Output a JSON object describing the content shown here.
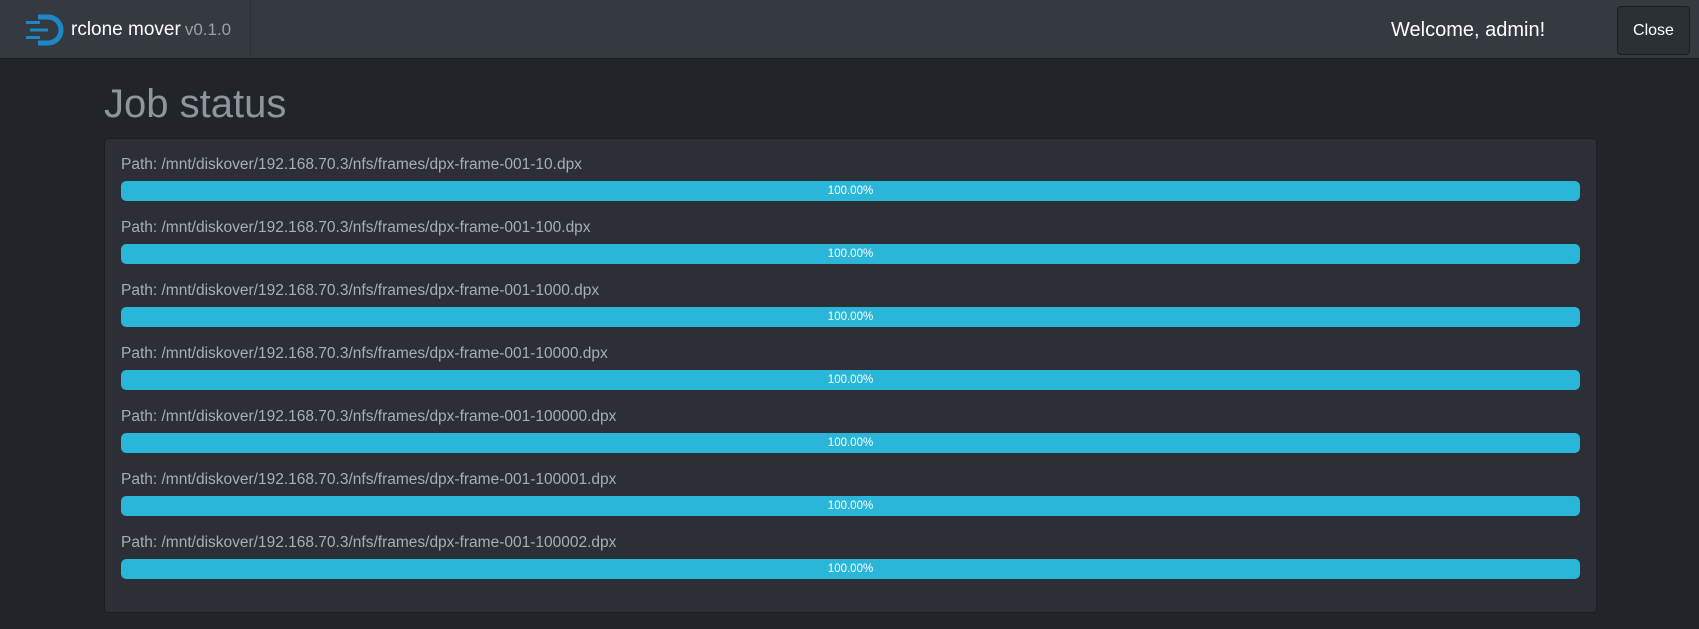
{
  "header": {
    "app_name": "rclone mover",
    "version": "v0.1.0",
    "welcome": "Welcome, admin!",
    "close": "Close"
  },
  "title": "Job status",
  "jobs": [
    {
      "path": "Path: /mnt/diskover/192.168.70.3/nfs/frames/dpx-frame-001-10.dpx",
      "progress": {
        "value": 100,
        "label": "100.00%"
      }
    },
    {
      "path": "Path: /mnt/diskover/192.168.70.3/nfs/frames/dpx-frame-001-100.dpx",
      "progress": {
        "value": 100,
        "label": "100.00%"
      }
    },
    {
      "path": "Path: /mnt/diskover/192.168.70.3/nfs/frames/dpx-frame-001-1000.dpx",
      "progress": {
        "value": 100,
        "label": "100.00%"
      }
    },
    {
      "path": "Path: /mnt/diskover/192.168.70.3/nfs/frames/dpx-frame-001-10000.dpx",
      "progress": {
        "value": 100,
        "label": "100.00%"
      }
    },
    {
      "path": "Path: /mnt/diskover/192.168.70.3/nfs/frames/dpx-frame-001-100000.dpx",
      "progress": {
        "value": 100,
        "label": "100.00%"
      }
    },
    {
      "path": "Path: /mnt/diskover/192.168.70.3/nfs/frames/dpx-frame-001-100001.dpx",
      "progress": {
        "value": 100,
        "label": "100.00%"
      }
    },
    {
      "path": "Path: /mnt/diskover/192.168.70.3/nfs/frames/dpx-frame-001-100002.dpx",
      "progress": {
        "value": 100,
        "label": "100.00%"
      }
    }
  ]
}
